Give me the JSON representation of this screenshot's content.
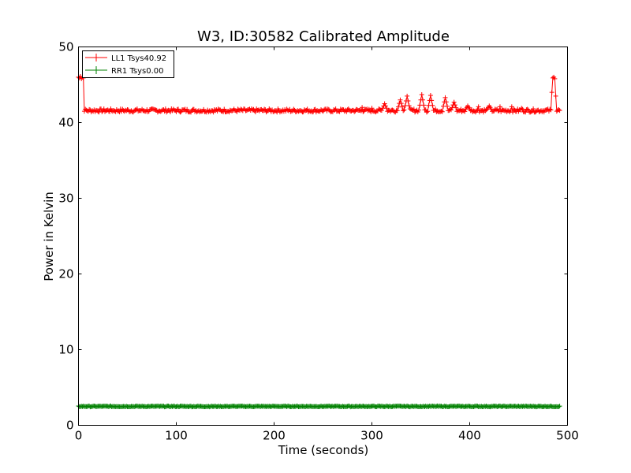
{
  "chart_data": {
    "type": "line",
    "title": "W3, ID:30582 Calibrated Amplitude",
    "xlabel": "Time (seconds)",
    "ylabel": "Power in Kelvin",
    "xlim": [
      0,
      500
    ],
    "ylim": [
      0,
      50
    ],
    "xticks": [
      0,
      100,
      200,
      300,
      400,
      500
    ],
    "yticks": [
      0,
      10,
      20,
      30,
      40,
      50
    ],
    "grid": false,
    "legend_position": "top-left",
    "series": [
      {
        "name": "LL1 Tsys40.92",
        "color": "#ff0000",
        "marker": "plus",
        "baseline": 41.6,
        "x_start": 0,
        "x_end": 492,
        "points": [
          [
            0,
            46.0
          ],
          [
            1,
            45.9
          ],
          [
            2,
            46.1
          ],
          [
            3,
            45.8
          ],
          [
            4,
            46.0
          ],
          [
            5,
            45.9
          ],
          [
            6,
            41.5
          ],
          [
            290,
            42.0
          ],
          [
            300,
            41.9
          ],
          [
            313,
            42.5
          ],
          [
            329,
            43.0
          ],
          [
            336,
            43.5
          ],
          [
            351,
            43.7
          ],
          [
            360,
            43.6
          ],
          [
            375,
            43.3
          ],
          [
            384,
            42.7
          ],
          [
            398,
            42.2
          ],
          [
            409,
            42.1
          ],
          [
            420,
            42.2
          ],
          [
            431,
            42.1
          ],
          [
            443,
            42.1
          ],
          [
            453,
            41.9
          ],
          [
            484,
            44.0
          ],
          [
            485,
            45.9
          ],
          [
            486,
            46.0
          ],
          [
            487,
            45.8
          ],
          [
            488,
            43.5
          ],
          [
            489,
            41.5
          ],
          [
            492,
            41.6
          ]
        ]
      },
      {
        "name": "RR1 Tsys0.00",
        "color": "#008000",
        "marker": "plus",
        "baseline": 2.5,
        "x_start": 0,
        "x_end": 492,
        "points": []
      }
    ]
  }
}
